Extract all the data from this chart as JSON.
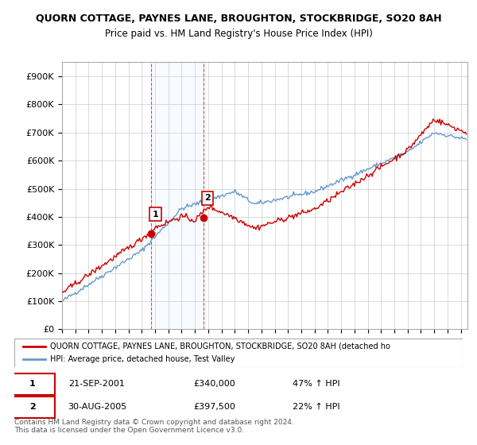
{
  "title1": "QUORN COTTAGE, PAYNES LANE, BROUGHTON, STOCKBRIDGE, SO20 8AH",
  "title2": "Price paid vs. HM Land Registry's House Price Index (HPI)",
  "ylabel_ticks": [
    "£0",
    "£100K",
    "£200K",
    "£300K",
    "£400K",
    "£500K",
    "£600K",
    "£700K",
    "£800K",
    "£900K"
  ],
  "ytick_vals": [
    0,
    100000,
    200000,
    300000,
    400000,
    500000,
    600000,
    700000,
    800000,
    900000
  ],
  "ylim": [
    0,
    950000
  ],
  "xlim_start": 1995.0,
  "xlim_end": 2025.5,
  "purchase1_x": 2001.72,
  "purchase1_y": 340000,
  "purchase1_label": "1",
  "purchase2_x": 2005.66,
  "purchase2_y": 397500,
  "purchase2_label": "2",
  "legend_line1": "QUORN COTTAGE, PAYNES LANE, BROUGHTON, STOCKBRIDGE, SO20 8AH (detached ho",
  "legend_line2": "HPI: Average price, detached house, Test Valley",
  "table_row1": [
    "1",
    "21-SEP-2001",
    "£340,000",
    "47% ↑ HPI"
  ],
  "table_row2": [
    "2",
    "30-AUG-2005",
    "£397,500",
    "22% ↑ HPI"
  ],
  "footer": "Contains HM Land Registry data © Crown copyright and database right 2024.\nThis data is licensed under the Open Government Licence v3.0.",
  "property_color": "#cc0000",
  "hpi_color": "#6699cc",
  "shade_color": "#ddeeff",
  "vline_color": "#cc0000",
  "grid_color": "#cccccc",
  "background_color": "#ffffff"
}
